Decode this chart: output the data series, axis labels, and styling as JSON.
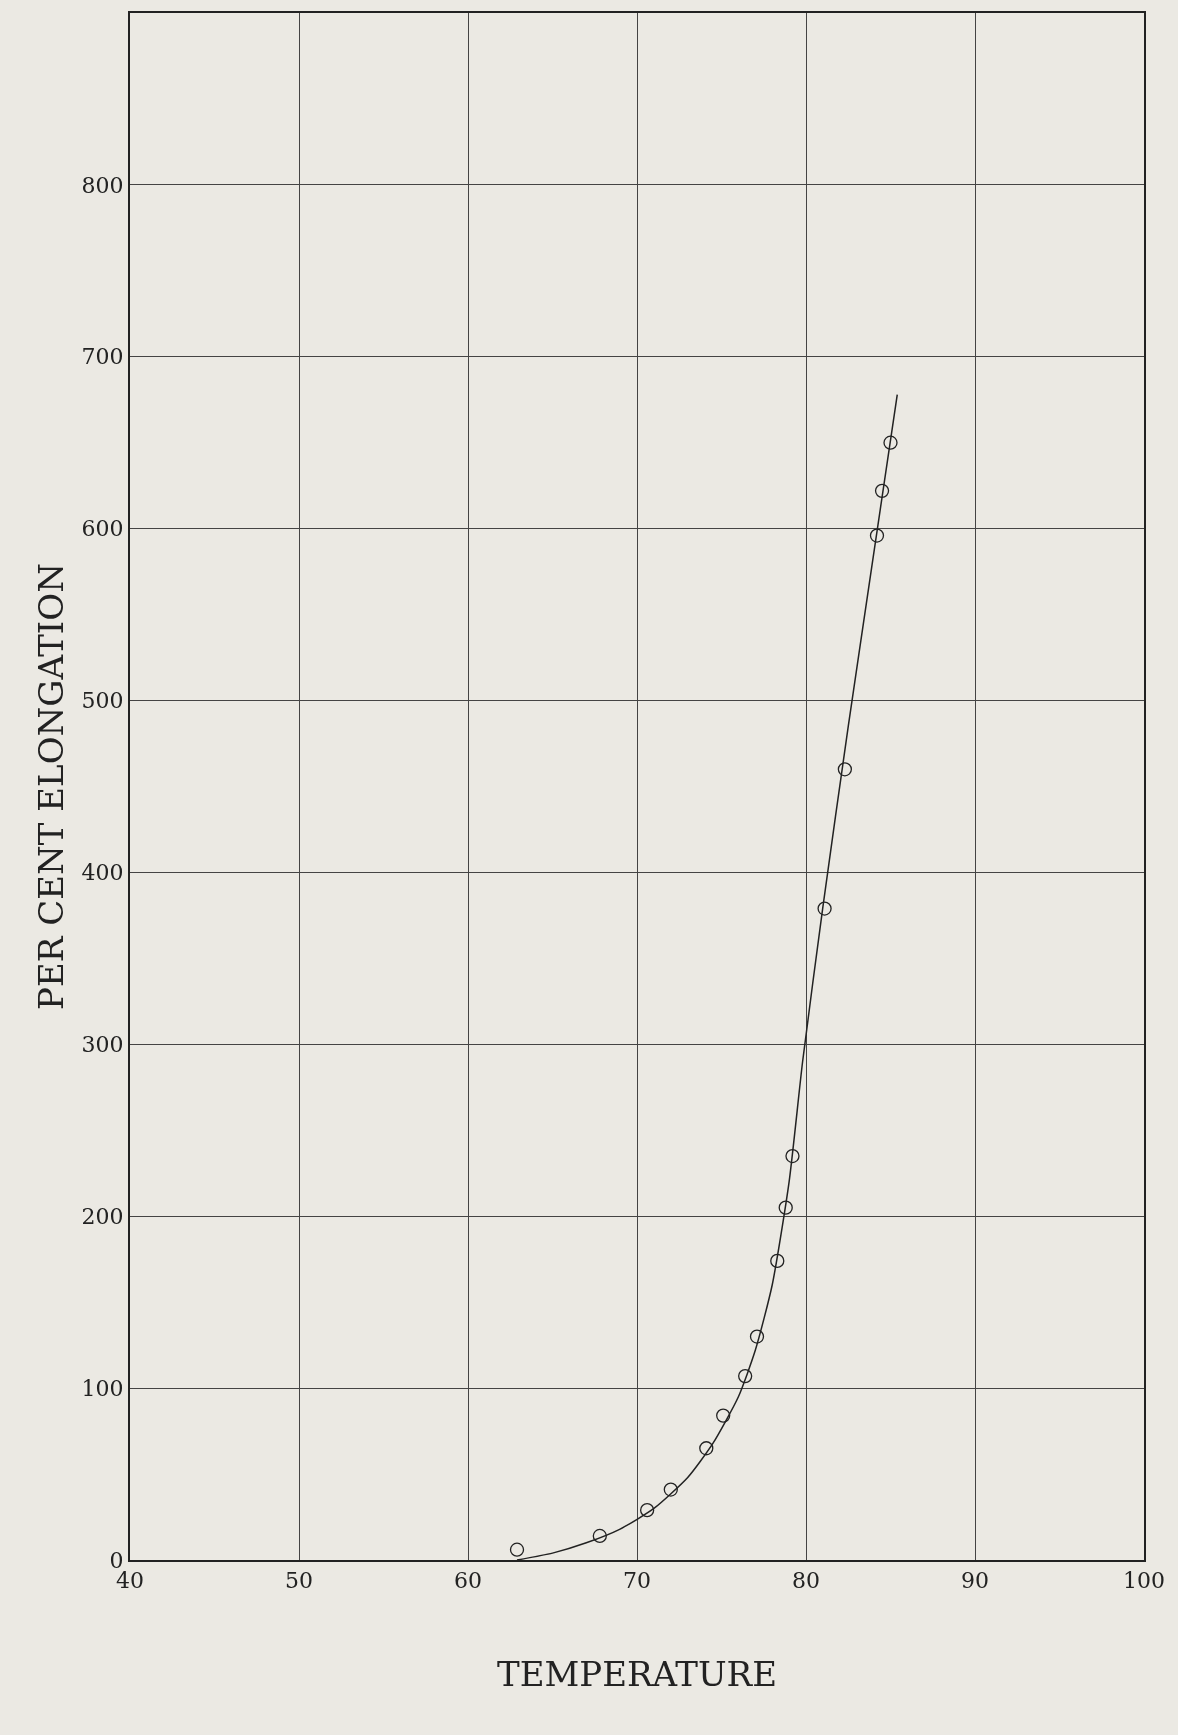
{
  "chart_data": {
    "type": "scatter",
    "xlabel": "TEMPERATURE",
    "ylabel": "PER CENT ELONGATION",
    "series": [
      {
        "color": "#222222",
        "marker": "circle",
        "x": [
          62.9,
          67.8,
          70.6,
          72.0,
          74.1,
          75.1,
          76.4,
          77.1,
          78.3,
          78.8,
          79.2,
          81.1,
          82.3,
          84.2,
          84.5,
          85.0
        ],
        "values": [
          6,
          14,
          29,
          41,
          65,
          84,
          107,
          130,
          174,
          205,
          235,
          379,
          460,
          596,
          622,
          650
        ]
      },
      {
        "type": "line",
        "color": "#222222",
        "marker": "none",
        "line_style": "solid",
        "x": [
          62.9,
          65,
          67,
          69,
          71,
          73,
          74.5,
          76,
          77,
          78,
          79,
          79.8,
          81,
          82.5,
          84,
          85.4
        ],
        "values": [
          0,
          4,
          10,
          18,
          30,
          48,
          68,
          95,
          122,
          160,
          220,
          290,
          380,
          485,
          585,
          678
        ]
      }
    ],
    "xlim": [
      40,
      100
    ],
    "xticks": [
      40,
      50,
      60,
      70,
      80,
      90,
      100
    ],
    "ylim": [
      0,
      900
    ],
    "yticks": [
      0,
      100,
      200,
      300,
      400,
      500,
      600,
      700,
      800
    ],
    "grid": true
  }
}
